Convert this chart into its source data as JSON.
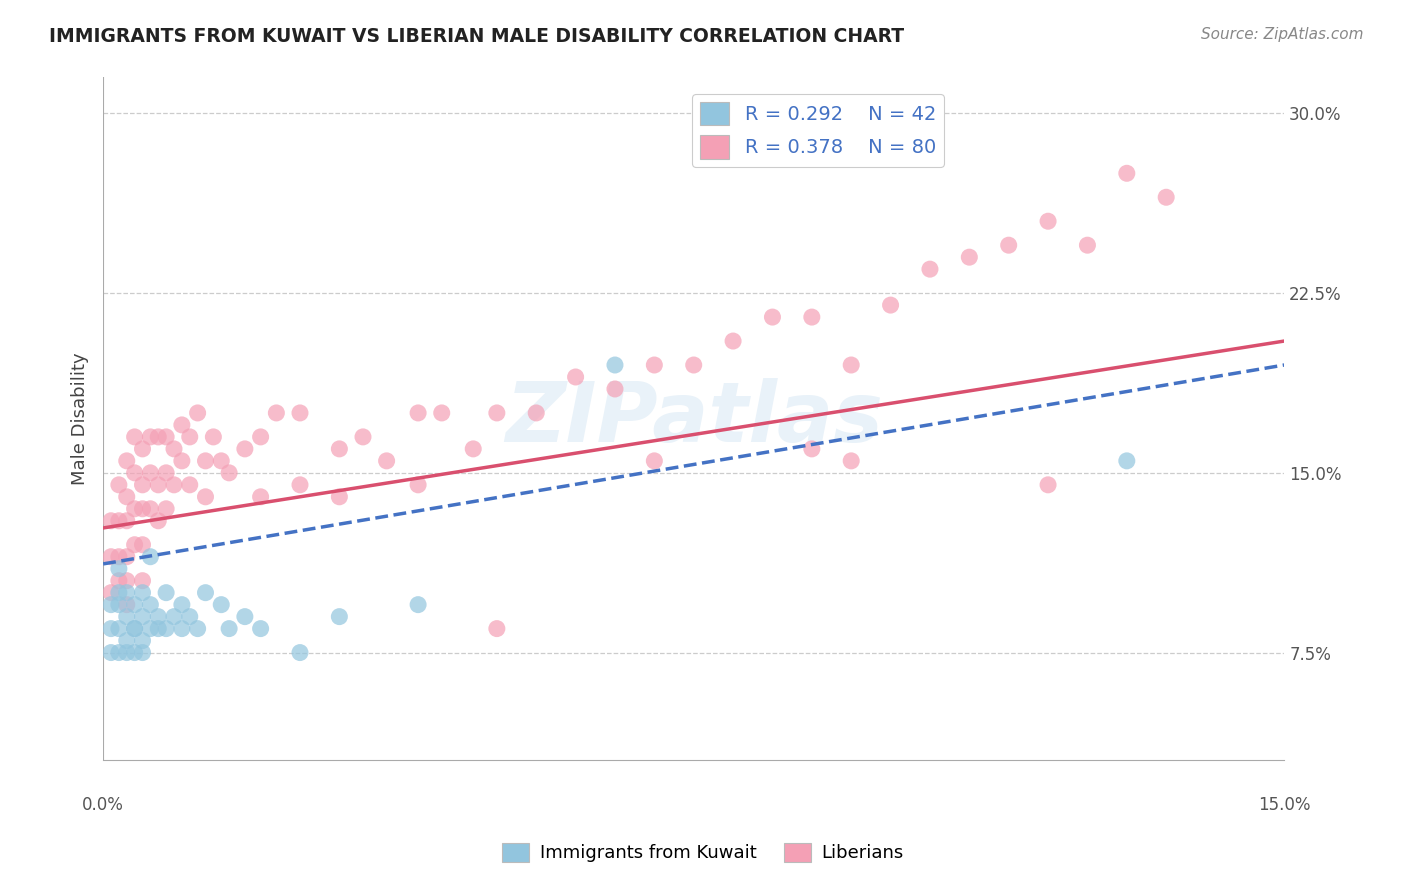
{
  "title": "IMMIGRANTS FROM KUWAIT VS LIBERIAN MALE DISABILITY CORRELATION CHART",
  "source": "Source: ZipAtlas.com",
  "ylabel": "Male Disability",
  "xmin": 0.0,
  "xmax": 0.15,
  "ymin": 0.03,
  "ymax": 0.315,
  "yticks": [
    0.075,
    0.15,
    0.225,
    0.3
  ],
  "ytick_labels": [
    "7.5%",
    "15.0%",
    "22.5%",
    "30.0%"
  ],
  "xtick_left_label": "0.0%",
  "xtick_right_label": "15.0%",
  "legend_r_kuwait": "R = 0.292",
  "legend_n_kuwait": "N = 42",
  "legend_r_liberian": "R = 0.378",
  "legend_n_liberian": "N = 80",
  "color_kuwait": "#92c5de",
  "color_liberian": "#f4a0b5",
  "color_trendline_kuwait": "#4472c4",
  "color_trendline_liberian": "#d94f6e",
  "color_grid": "#cccccc",
  "color_title": "#222222",
  "color_source": "#888888",
  "color_legend_text": "#4472c4",
  "watermark_text": "ZIPatlas",
  "trendline_kuwait_x0": 0.0,
  "trendline_kuwait_y0": 0.112,
  "trendline_kuwait_x1": 0.15,
  "trendline_kuwait_y1": 0.195,
  "trendline_liberian_x0": 0.0,
  "trendline_liberian_y0": 0.127,
  "trendline_liberian_x1": 0.15,
  "trendline_liberian_y1": 0.205,
  "kuwait_x": [
    0.001,
    0.001,
    0.001,
    0.002,
    0.002,
    0.002,
    0.002,
    0.002,
    0.003,
    0.003,
    0.003,
    0.003,
    0.004,
    0.004,
    0.004,
    0.004,
    0.005,
    0.005,
    0.005,
    0.005,
    0.006,
    0.006,
    0.006,
    0.007,
    0.007,
    0.008,
    0.008,
    0.009,
    0.01,
    0.01,
    0.011,
    0.012,
    0.013,
    0.015,
    0.016,
    0.018,
    0.02,
    0.025,
    0.03,
    0.04,
    0.065,
    0.13
  ],
  "kuwait_y": [
    0.085,
    0.095,
    0.075,
    0.1,
    0.11,
    0.085,
    0.095,
    0.075,
    0.09,
    0.1,
    0.08,
    0.075,
    0.085,
    0.095,
    0.075,
    0.085,
    0.1,
    0.09,
    0.08,
    0.075,
    0.115,
    0.095,
    0.085,
    0.09,
    0.085,
    0.1,
    0.085,
    0.09,
    0.095,
    0.085,
    0.09,
    0.085,
    0.1,
    0.095,
    0.085,
    0.09,
    0.085,
    0.075,
    0.09,
    0.095,
    0.195,
    0.155
  ],
  "liberian_x": [
    0.001,
    0.001,
    0.001,
    0.002,
    0.002,
    0.002,
    0.002,
    0.003,
    0.003,
    0.003,
    0.003,
    0.003,
    0.003,
    0.004,
    0.004,
    0.004,
    0.004,
    0.005,
    0.005,
    0.005,
    0.005,
    0.005,
    0.006,
    0.006,
    0.006,
    0.007,
    0.007,
    0.007,
    0.008,
    0.008,
    0.008,
    0.009,
    0.009,
    0.01,
    0.01,
    0.011,
    0.011,
    0.012,
    0.013,
    0.013,
    0.014,
    0.015,
    0.016,
    0.018,
    0.02,
    0.02,
    0.022,
    0.025,
    0.025,
    0.03,
    0.03,
    0.033,
    0.036,
    0.04,
    0.04,
    0.043,
    0.047,
    0.05,
    0.055,
    0.06,
    0.065,
    0.07,
    0.075,
    0.08,
    0.085,
    0.09,
    0.095,
    0.1,
    0.105,
    0.11,
    0.115,
    0.12,
    0.125,
    0.13,
    0.135,
    0.09,
    0.05,
    0.07,
    0.095,
    0.12
  ],
  "liberian_y": [
    0.13,
    0.115,
    0.1,
    0.145,
    0.13,
    0.115,
    0.105,
    0.155,
    0.14,
    0.13,
    0.115,
    0.105,
    0.095,
    0.165,
    0.15,
    0.135,
    0.12,
    0.16,
    0.145,
    0.135,
    0.12,
    0.105,
    0.165,
    0.15,
    0.135,
    0.165,
    0.145,
    0.13,
    0.165,
    0.15,
    0.135,
    0.16,
    0.145,
    0.17,
    0.155,
    0.165,
    0.145,
    0.175,
    0.155,
    0.14,
    0.165,
    0.155,
    0.15,
    0.16,
    0.165,
    0.14,
    0.175,
    0.175,
    0.145,
    0.16,
    0.14,
    0.165,
    0.155,
    0.175,
    0.145,
    0.175,
    0.16,
    0.175,
    0.175,
    0.19,
    0.185,
    0.195,
    0.195,
    0.205,
    0.215,
    0.215,
    0.195,
    0.22,
    0.235,
    0.24,
    0.245,
    0.255,
    0.245,
    0.275,
    0.265,
    0.16,
    0.085,
    0.155,
    0.155,
    0.145
  ]
}
